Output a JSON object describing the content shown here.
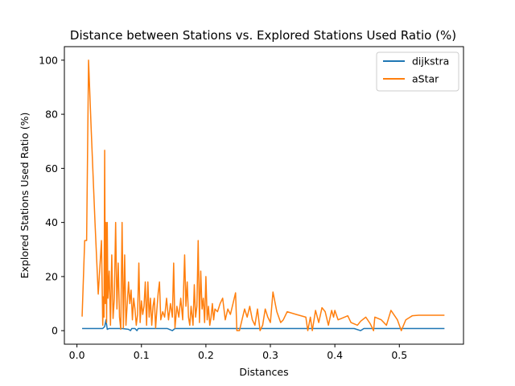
{
  "chart_data": {
    "type": "line",
    "title": "Distance between Stations vs. Explored Stations Used Ratio (%)",
    "xlabel": "Distances",
    "ylabel": "Explored Stations Used Ratio (%)",
    "xlim": [
      -0.0195,
      0.5995
    ],
    "ylim": [
      -5,
      105
    ],
    "x_ticks": [
      0.0,
      0.1,
      0.2,
      0.3,
      0.4,
      0.5
    ],
    "x_tick_labels": [
      "0.0",
      "0.1",
      "0.2",
      "0.3",
      "0.4",
      "0.5"
    ],
    "y_ticks": [
      0,
      20,
      40,
      60,
      80,
      100
    ],
    "y_tick_labels": [
      "0",
      "20",
      "40",
      "60",
      "80",
      "100"
    ],
    "grid": false,
    "legend_position": "top-right",
    "series": [
      {
        "name": "dijkstra",
        "color": "#1f77b4",
        "points": [
          [
            0.008,
            0.8
          ],
          [
            0.02,
            0.8
          ],
          [
            0.035,
            0.8
          ],
          [
            0.04,
            0.8
          ],
          [
            0.043,
            1.5
          ],
          [
            0.045,
            4.0
          ],
          [
            0.047,
            0.5
          ],
          [
            0.05,
            0.8
          ],
          [
            0.07,
            0.8
          ],
          [
            0.08,
            0.5
          ],
          [
            0.083,
            0.0
          ],
          [
            0.085,
            0.8
          ],
          [
            0.09,
            0.8
          ],
          [
            0.093,
            0.0
          ],
          [
            0.095,
            0.8
          ],
          [
            0.14,
            0.8
          ],
          [
            0.148,
            0.0
          ],
          [
            0.152,
            0.8
          ],
          [
            0.2,
            0.8
          ],
          [
            0.3,
            0.8
          ],
          [
            0.36,
            0.8
          ],
          [
            0.38,
            0.8
          ],
          [
            0.43,
            0.8
          ],
          [
            0.44,
            0.0
          ],
          [
            0.445,
            0.8
          ],
          [
            0.5,
            0.8
          ],
          [
            0.57,
            0.8
          ]
        ]
      },
      {
        "name": "aStar",
        "color": "#ff7f0e",
        "points": [
          [
            0.008,
            5.2
          ],
          [
            0.012,
            33.3
          ],
          [
            0.015,
            33.3
          ],
          [
            0.018,
            100.0
          ],
          [
            0.022,
            75.0
          ],
          [
            0.028,
            40.0
          ],
          [
            0.033,
            13.5
          ],
          [
            0.038,
            33.3
          ],
          [
            0.04,
            2.0
          ],
          [
            0.041,
            12.5
          ],
          [
            0.042,
            5.0
          ],
          [
            0.043,
            66.7
          ],
          [
            0.044,
            10.0
          ],
          [
            0.045,
            40.0
          ],
          [
            0.046,
            3.0
          ],
          [
            0.047,
            40.0
          ],
          [
            0.048,
            12.0
          ],
          [
            0.05,
            22.0
          ],
          [
            0.052,
            2.0
          ],
          [
            0.054,
            28.0
          ],
          [
            0.056,
            4.5
          ],
          [
            0.058,
            12.0
          ],
          [
            0.06,
            40.0
          ],
          [
            0.062,
            8.0
          ],
          [
            0.064,
            25.0
          ],
          [
            0.066,
            5.0
          ],
          [
            0.068,
            0.5
          ],
          [
            0.07,
            40.0
          ],
          [
            0.072,
            1.0
          ],
          [
            0.074,
            28.0
          ],
          [
            0.076,
            2.0
          ],
          [
            0.078,
            10.0
          ],
          [
            0.08,
            18.0
          ],
          [
            0.082,
            10.0
          ],
          [
            0.084,
            15.0
          ],
          [
            0.086,
            4.0
          ],
          [
            0.088,
            12.0
          ],
          [
            0.09,
            8.0
          ],
          [
            0.092,
            2.0
          ],
          [
            0.094,
            6.0
          ],
          [
            0.096,
            25.0
          ],
          [
            0.098,
            3.0
          ],
          [
            0.1,
            11.0
          ],
          [
            0.102,
            6.0
          ],
          [
            0.104,
            9.0
          ],
          [
            0.106,
            18.0
          ],
          [
            0.108,
            2.0
          ],
          [
            0.11,
            18.0
          ],
          [
            0.112,
            5.0
          ],
          [
            0.114,
            12.0
          ],
          [
            0.116,
            2.0
          ],
          [
            0.118,
            9.0
          ],
          [
            0.12,
            12.0
          ],
          [
            0.122,
            1.0
          ],
          [
            0.124,
            8.0
          ],
          [
            0.126,
            14.0
          ],
          [
            0.128,
            18.0
          ],
          [
            0.13,
            4.0
          ],
          [
            0.133,
            7.0
          ],
          [
            0.136,
            5.0
          ],
          [
            0.139,
            12.0
          ],
          [
            0.142,
            4.0
          ],
          [
            0.145,
            10.0
          ],
          [
            0.148,
            5.0
          ],
          [
            0.15,
            25.0
          ],
          [
            0.152,
            1.0
          ],
          [
            0.155,
            9.0
          ],
          [
            0.158,
            5.0
          ],
          [
            0.161,
            12.0
          ],
          [
            0.164,
            4.0
          ],
          [
            0.167,
            28.0
          ],
          [
            0.169,
            9.0
          ],
          [
            0.171,
            18.0
          ],
          [
            0.173,
            5.0
          ],
          [
            0.175,
            2.0
          ],
          [
            0.177,
            9.0
          ],
          [
            0.18,
            2.0
          ],
          [
            0.182,
            17.0
          ],
          [
            0.184,
            5.0
          ],
          [
            0.186,
            9.0
          ],
          [
            0.188,
            33.3
          ],
          [
            0.19,
            3.0
          ],
          [
            0.192,
            22.0
          ],
          [
            0.194,
            8.0
          ],
          [
            0.196,
            12.0
          ],
          [
            0.198,
            3.0
          ],
          [
            0.2,
            20.0
          ],
          [
            0.202,
            4.0
          ],
          [
            0.204,
            9.0
          ],
          [
            0.206,
            2.0
          ],
          [
            0.208,
            5.0
          ],
          [
            0.21,
            10.0
          ],
          [
            0.212,
            4.0
          ],
          [
            0.214,
            8.0
          ],
          [
            0.218,
            7.0
          ],
          [
            0.222,
            10.0
          ],
          [
            0.226,
            12.0
          ],
          [
            0.23,
            4.0
          ],
          [
            0.234,
            8.0
          ],
          [
            0.238,
            6.0
          ],
          [
            0.242,
            10.0
          ],
          [
            0.246,
            14.0
          ],
          [
            0.248,
            0.0
          ],
          [
            0.252,
            0.0
          ],
          [
            0.256,
            4.0
          ],
          [
            0.26,
            8.0
          ],
          [
            0.264,
            5.0
          ],
          [
            0.268,
            9.0
          ],
          [
            0.272,
            4.0
          ],
          [
            0.276,
            2.0
          ],
          [
            0.28,
            8.0
          ],
          [
            0.284,
            0.0
          ],
          [
            0.288,
            2.0
          ],
          [
            0.292,
            8.0
          ],
          [
            0.296,
            5.0
          ],
          [
            0.3,
            3.0
          ],
          [
            0.304,
            14.3
          ],
          [
            0.31,
            7.0
          ],
          [
            0.316,
            3.0
          ],
          [
            0.32,
            4.0
          ],
          [
            0.326,
            7.0
          ],
          [
            0.34,
            6.0
          ],
          [
            0.355,
            5.0
          ],
          [
            0.358,
            0.0
          ],
          [
            0.362,
            5.0
          ],
          [
            0.365,
            0.0
          ],
          [
            0.37,
            7.5
          ],
          [
            0.375,
            3.0
          ],
          [
            0.38,
            8.5
          ],
          [
            0.385,
            7.0
          ],
          [
            0.39,
            2.0
          ],
          [
            0.395,
            7.5
          ],
          [
            0.398,
            5.0
          ],
          [
            0.4,
            7.5
          ],
          [
            0.405,
            4.0
          ],
          [
            0.41,
            4.5
          ],
          [
            0.42,
            5.5
          ],
          [
            0.425,
            3.0
          ],
          [
            0.435,
            2.0
          ],
          [
            0.44,
            3.5
          ],
          [
            0.448,
            5.0
          ],
          [
            0.455,
            2.5
          ],
          [
            0.46,
            0.0
          ],
          [
            0.462,
            5.0
          ],
          [
            0.472,
            4.0
          ],
          [
            0.48,
            2.0
          ],
          [
            0.487,
            7.5
          ],
          [
            0.497,
            4.0
          ],
          [
            0.503,
            0.0
          ],
          [
            0.51,
            4.0
          ],
          [
            0.52,
            5.5
          ],
          [
            0.53,
            5.7
          ],
          [
            0.57,
            5.7
          ]
        ]
      }
    ]
  }
}
